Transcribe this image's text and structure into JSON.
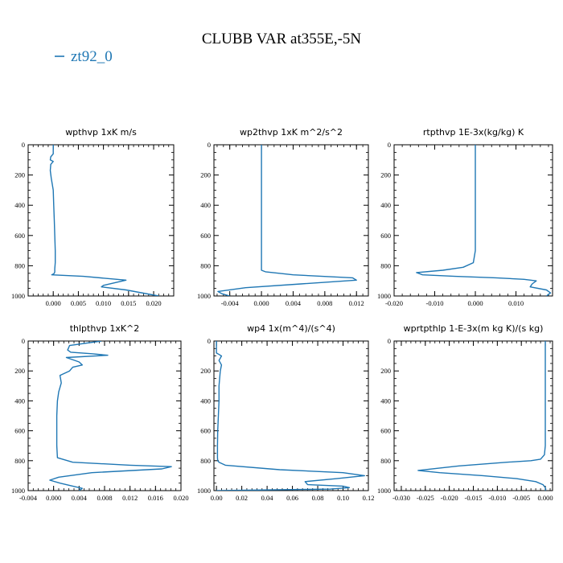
{
  "figure": {
    "title": "CLUBB VAR at355E,-5N",
    "legend_label": "zt92_0",
    "series_color": "#1f77b4"
  },
  "chart_data": [
    {
      "type": "line",
      "title": "wpthvp   1xK m/s",
      "xlim": [
        -0.005,
        0.024
      ],
      "ylim": [
        1000,
        0
      ],
      "xticks": [
        0.0,
        0.005,
        0.01,
        0.015,
        0.02
      ],
      "xticklabels": [
        "0.000",
        "0.005",
        "0.010",
        "0.015",
        "0.020"
      ],
      "yticks": [
        0,
        200,
        400,
        600,
        800,
        1000
      ],
      "yticklabels": [
        "0",
        "200",
        "400",
        "600",
        "800",
        "1000"
      ],
      "x": [
        0.0,
        0.0,
        -0.0005,
        -0.0006,
        0.0,
        -0.0005,
        -0.0006,
        -0.0004,
        0.0,
        0.0001,
        0.0002,
        0.0003,
        0.0004,
        0.0004,
        0.0003,
        0.0003,
        0.0002,
        0.0,
        -0.0003,
        0.006,
        0.0145,
        0.01,
        0.0096,
        0.0145,
        0.021
      ],
      "y": [
        0,
        60,
        80,
        100,
        110,
        130,
        170,
        220,
        300,
        400,
        500,
        600,
        700,
        780,
        820,
        840,
        850,
        855,
        860,
        870,
        895,
        930,
        940,
        960,
        1000
      ]
    },
    {
      "type": "line",
      "title": "wp2thvp   1xK m^2/s^2",
      "xlim": [
        -0.006,
        0.0135
      ],
      "ylim": [
        1000,
        0
      ],
      "xticks": [
        -0.004,
        0.0,
        0.004,
        0.008,
        0.012
      ],
      "xticklabels": [
        "-0.004",
        "0.000",
        "0.004",
        "0.008",
        "0.012"
      ],
      "yticks": [
        0,
        200,
        400,
        600,
        800,
        1000
      ],
      "yticklabels": [
        "0",
        "200",
        "400",
        "600",
        "800",
        "1000"
      ],
      "x": [
        0.0,
        0.0,
        0.0,
        0.0,
        0.0,
        0.0,
        0.0,
        0.0,
        0.0005,
        0.004,
        0.0115,
        0.012,
        0.005,
        -0.002,
        -0.0055,
        -0.005,
        -0.004
      ],
      "y": [
        0,
        200,
        400,
        600,
        700,
        780,
        810,
        830,
        840,
        860,
        880,
        895,
        920,
        945,
        970,
        985,
        1000
      ]
    },
    {
      "type": "line",
      "title": "rtpthvp   1E-3x(kg/kg) K",
      "xlim": [
        -0.02,
        0.019
      ],
      "ylim": [
        1000,
        0
      ],
      "xticks": [
        -0.02,
        -0.01,
        0.0,
        0.01
      ],
      "xticklabels": [
        "-0.020",
        "-0.010",
        "0.000",
        "0.010"
      ],
      "yticks": [
        0,
        200,
        400,
        600,
        800,
        1000
      ],
      "yticklabels": [
        "0",
        "200",
        "400",
        "600",
        "800",
        "1000"
      ],
      "x": [
        0.0,
        0.0,
        0.0,
        0.0,
        0.0,
        -0.0005,
        -0.003,
        -0.008,
        -0.0145,
        -0.013,
        -0.005,
        0.005,
        0.012,
        0.015,
        0.014,
        0.0135,
        0.0175,
        0.0185,
        0.0175
      ],
      "y": [
        0,
        200,
        400,
        600,
        700,
        780,
        810,
        830,
        845,
        860,
        870,
        880,
        890,
        900,
        920,
        940,
        960,
        980,
        1000
      ]
    },
    {
      "type": "line",
      "title": "thlpthvp   1xK^2",
      "xlim": [
        -0.004,
        0.02
      ],
      "ylim": [
        1000,
        0
      ],
      "xticks": [
        -0.004,
        0.0,
        0.004,
        0.008,
        0.012,
        0.016,
        0.02
      ],
      "xticklabels": [
        "-0.004",
        "0.000",
        "0.004",
        "0.008",
        "0.012",
        "0.016",
        "0.020"
      ],
      "yticks": [
        0,
        200,
        400,
        600,
        800,
        1000
      ],
      "yticklabels": [
        "0",
        "200",
        "400",
        "600",
        "800",
        "1000"
      ],
      "x": [
        0.0075,
        0.0025,
        0.0022,
        0.0027,
        0.006,
        0.0085,
        0.002,
        0.004,
        0.0045,
        0.003,
        0.0025,
        0.001,
        0.0012,
        0.0008,
        0.0006,
        0.0005,
        0.0005,
        0.0005,
        0.0006,
        0.003,
        0.012,
        0.0185,
        0.017,
        0.006,
        0.0008,
        -0.0006,
        0.001,
        0.003,
        0.0045,
        0.004
      ],
      "y": [
        0,
        30,
        60,
        75,
        85,
        95,
        110,
        140,
        160,
        175,
        200,
        230,
        280,
        340,
        400,
        500,
        600,
        700,
        780,
        810,
        830,
        840,
        855,
        880,
        910,
        930,
        950,
        970,
        985,
        1000
      ]
    },
    {
      "type": "line",
      "title": "wp4   1x(m^4)/(s^4)",
      "xlim": [
        -0.002,
        0.12
      ],
      "ylim": [
        1000,
        0
      ],
      "xticks": [
        0.0,
        0.02,
        0.04,
        0.06,
        0.08,
        0.1,
        0.12
      ],
      "xticklabels": [
        "0.00",
        "0.02",
        "0.04",
        "0.06",
        "0.08",
        "0.10",
        "0.12"
      ],
      "yticks": [
        0,
        200,
        400,
        600,
        800,
        1000
      ],
      "yticklabels": [
        "0",
        "200",
        "400",
        "600",
        "800",
        "1000"
      ],
      "x": [
        0.0,
        0.0,
        0.002,
        0.004,
        0.002,
        0.004,
        0.003,
        0.002,
        0.002,
        0.0015,
        0.001,
        0.0008,
        0.0008,
        0.001,
        0.002,
        0.007,
        0.05,
        0.1,
        0.117,
        0.095,
        0.07,
        0.072,
        0.1,
        0.105,
        0.09,
        0.0
      ],
      "y": [
        0,
        80,
        90,
        100,
        130,
        160,
        200,
        300,
        400,
        500,
        600,
        700,
        780,
        800,
        810,
        830,
        860,
        880,
        900,
        920,
        940,
        960,
        970,
        980,
        990,
        1000
      ]
    },
    {
      "type": "line",
      "title": "wprtpthlp   1-E-3x(m kg K)/(s kg)",
      "xlim": [
        -0.0315,
        0.0015
      ],
      "ylim": [
        1000,
        0
      ],
      "xticks": [
        -0.03,
        -0.025,
        -0.02,
        -0.015,
        -0.01,
        -0.005,
        0.0
      ],
      "xticklabels": [
        "-0.030",
        "-0.025",
        "-0.020",
        "-0.015",
        "-0.010",
        "-0.005",
        "0.000"
      ],
      "yticks": [
        0,
        200,
        400,
        600,
        800,
        1000
      ],
      "yticklabels": [
        "0",
        "200",
        "400",
        "600",
        "800",
        "1000"
      ],
      "x": [
        0.0,
        0.0,
        0.0,
        0.0,
        0.0,
        -0.0002,
        -0.001,
        -0.003,
        -0.008,
        -0.018,
        -0.0265,
        -0.022,
        -0.013,
        -0.006,
        -0.002,
        -0.0005,
        0.0,
        0.0001,
        0.0
      ],
      "y": [
        0,
        200,
        400,
        600,
        700,
        760,
        790,
        800,
        810,
        835,
        865,
        880,
        900,
        920,
        940,
        960,
        980,
        990,
        1000
      ]
    }
  ]
}
